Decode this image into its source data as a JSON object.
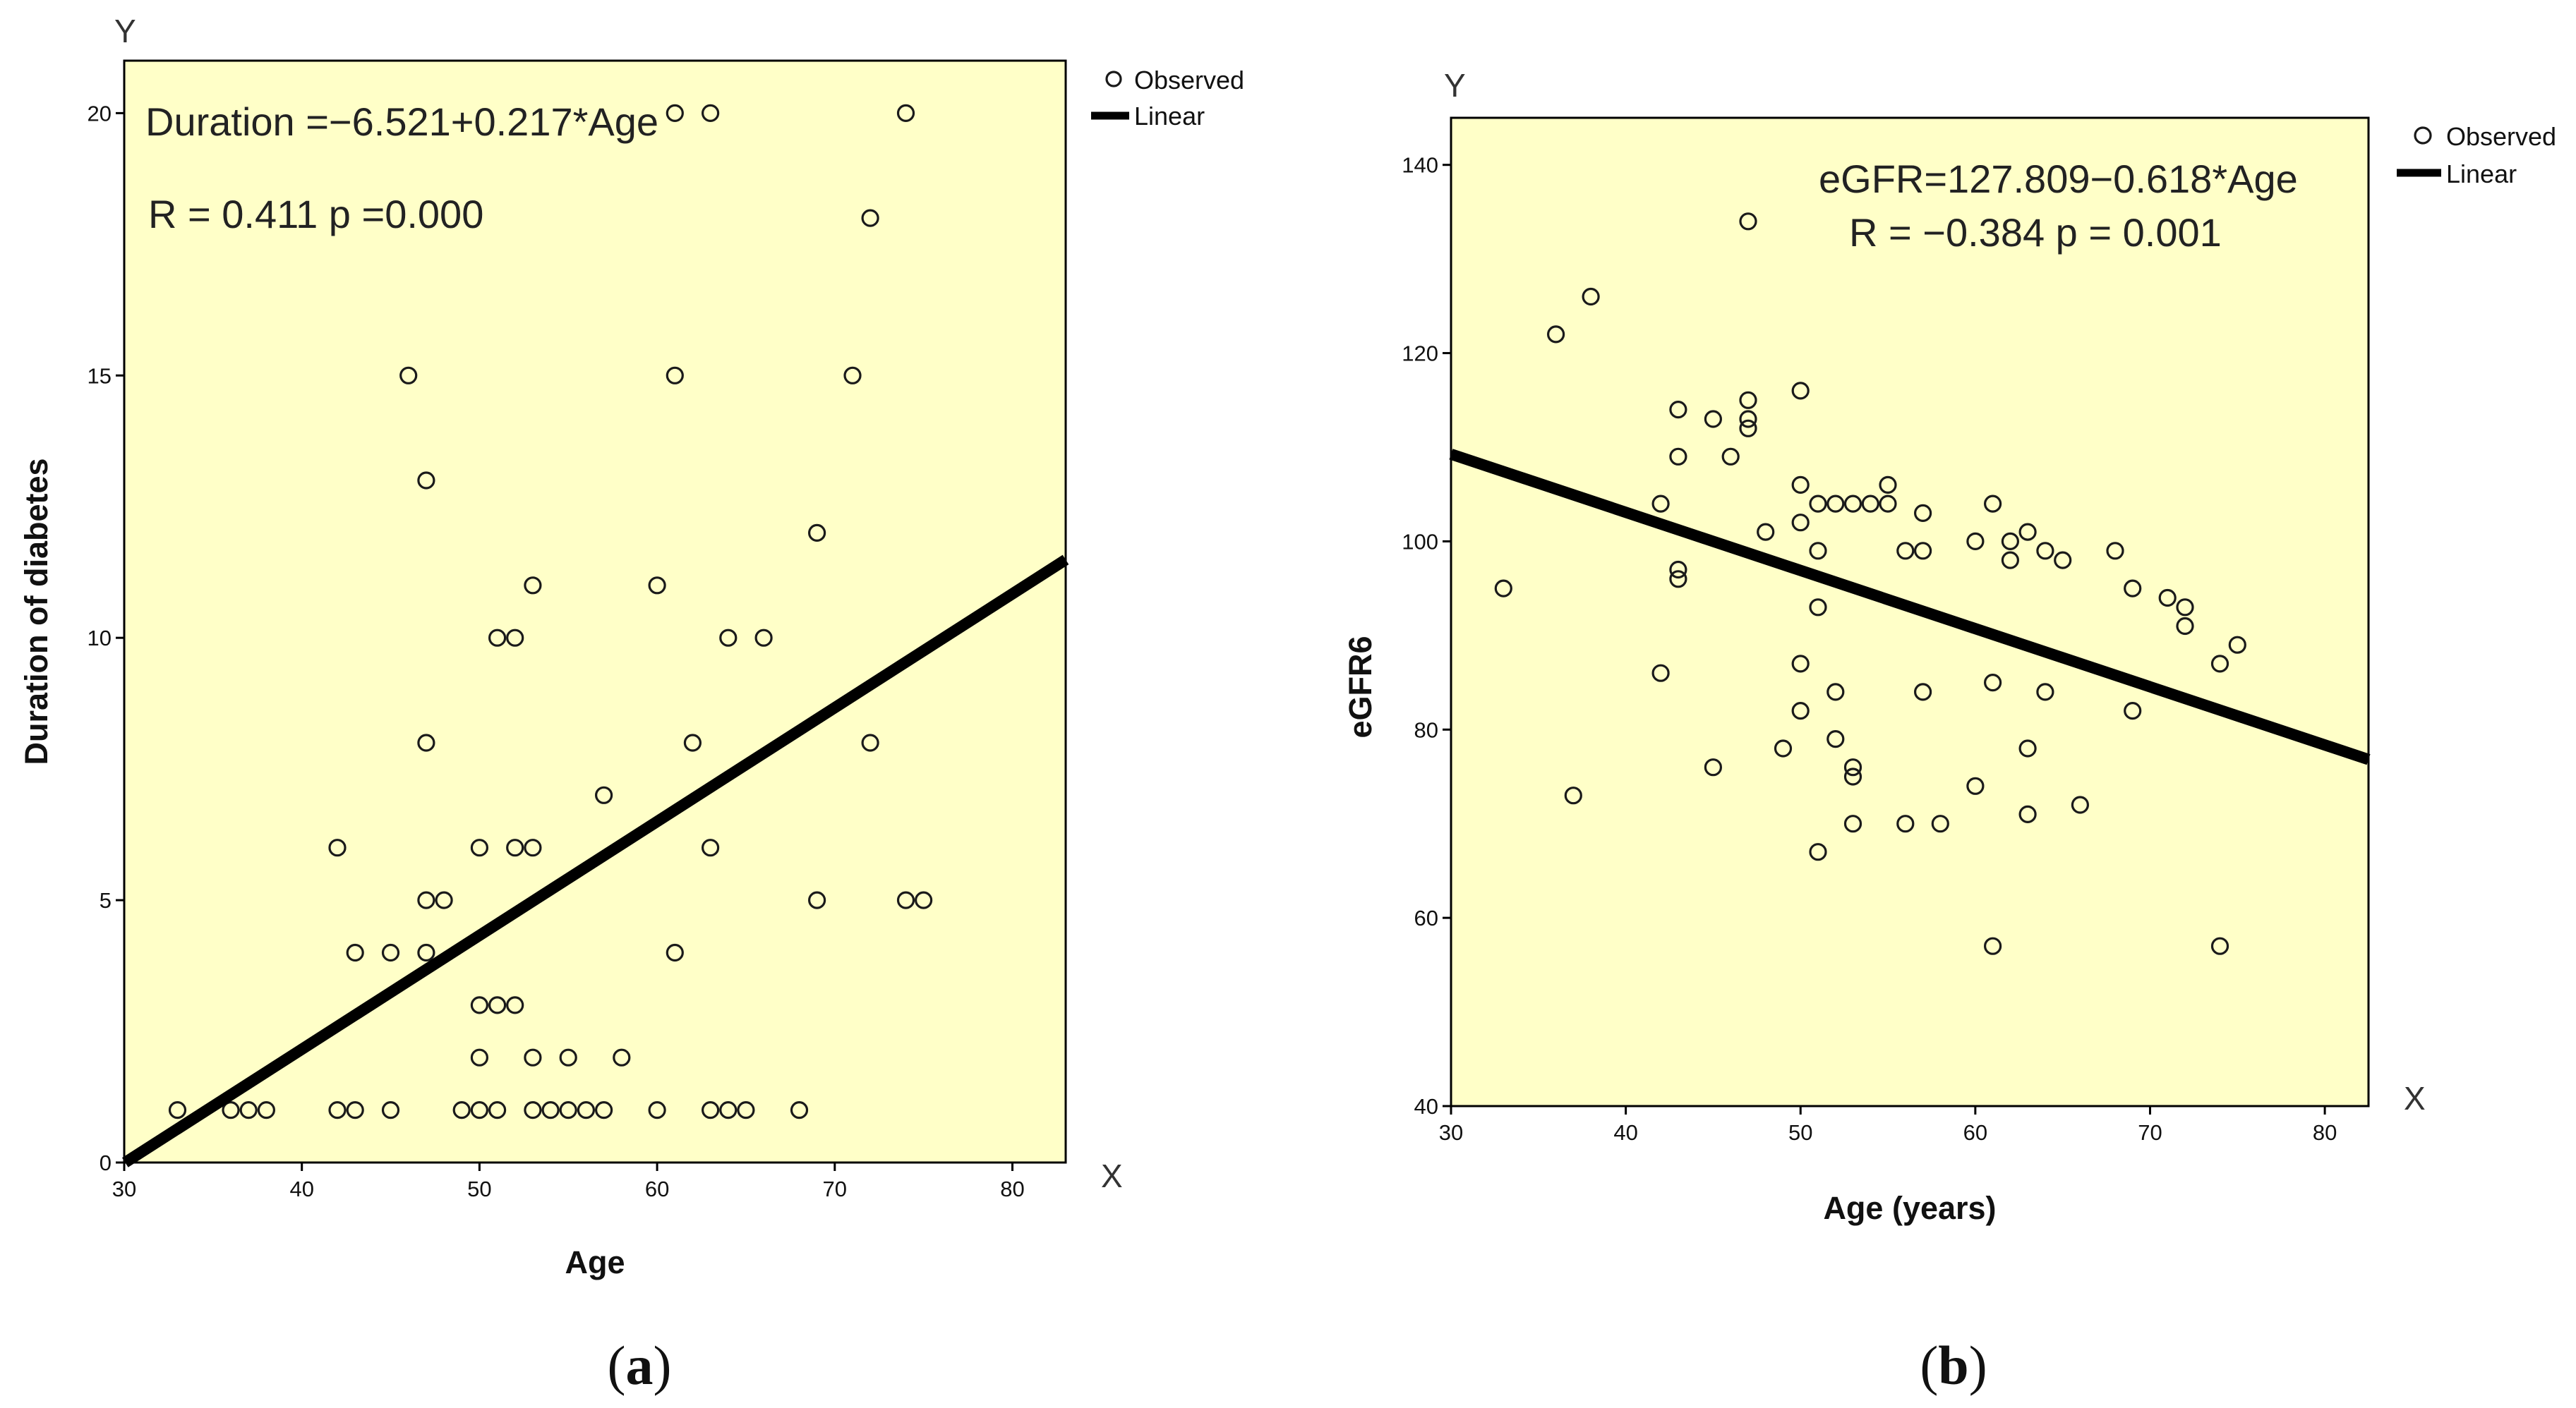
{
  "chart_data": [
    {
      "type": "scatter",
      "panel_label": "(a)",
      "panel_letter": "a",
      "equation": "Duration =−6.521+0.217*Age",
      "stats": "R = 0.411 p =0.000",
      "xlabel": "Age",
      "ylabel": "Duration  of  diabetes",
      "x_corner": "X",
      "y_corner": "Y",
      "xlim": [
        30,
        83
      ],
      "ylim": [
        0,
        21
      ],
      "xticks": [
        30,
        40,
        50,
        60,
        70,
        80
      ],
      "yticks": [
        0,
        5,
        10,
        15,
        20
      ],
      "grid": false,
      "legend": {
        "position": "top-right",
        "observed": "Observed",
        "linear": "Linear"
      },
      "series": [
        {
          "name": "Observed",
          "points": [
            [
              33,
              1
            ],
            [
              36,
              1
            ],
            [
              37,
              1
            ],
            [
              38,
              1
            ],
            [
              42,
              1
            ],
            [
              43,
              1
            ],
            [
              45,
              1
            ],
            [
              49,
              1
            ],
            [
              50,
              1
            ],
            [
              51,
              1
            ],
            [
              53,
              1
            ],
            [
              54,
              1
            ],
            [
              55,
              1
            ],
            [
              56,
              1
            ],
            [
              57,
              1
            ],
            [
              60,
              1
            ],
            [
              63,
              1
            ],
            [
              64,
              1
            ],
            [
              65,
              1
            ],
            [
              68,
              1
            ],
            [
              50,
              2
            ],
            [
              53,
              2
            ],
            [
              55,
              2
            ],
            [
              58,
              2
            ],
            [
              50,
              3
            ],
            [
              51,
              3
            ],
            [
              52,
              3
            ],
            [
              43,
              4
            ],
            [
              45,
              4
            ],
            [
              47,
              4
            ],
            [
              61,
              4
            ],
            [
              47,
              5
            ],
            [
              48,
              5
            ],
            [
              69,
              5
            ],
            [
              74,
              5
            ],
            [
              75,
              5
            ],
            [
              42,
              6
            ],
            [
              50,
              6
            ],
            [
              52,
              6
            ],
            [
              53,
              6
            ],
            [
              63,
              6
            ],
            [
              57,
              7
            ],
            [
              47,
              8
            ],
            [
              62,
              8
            ],
            [
              72,
              8
            ],
            [
              51,
              10
            ],
            [
              52,
              10
            ],
            [
              64,
              10
            ],
            [
              66,
              10
            ],
            [
              53,
              11
            ],
            [
              60,
              11
            ],
            [
              69,
              12
            ],
            [
              47,
              13
            ],
            [
              46,
              15
            ],
            [
              61,
              15
            ],
            [
              71,
              15
            ],
            [
              72,
              18
            ],
            [
              61,
              20
            ],
            [
              63,
              20
            ],
            [
              74,
              20
            ]
          ]
        },
        {
          "name": "Linear",
          "intercept": -6.521,
          "slope": 0.217,
          "x_range": [
            30,
            83
          ]
        }
      ]
    },
    {
      "type": "scatter",
      "panel_label": "(b)",
      "panel_letter": "b",
      "equation": "eGFR=127.809−0.618*Age",
      "stats": "R = −0.384  p = 0.001",
      "xlabel": "Age (years)",
      "ylabel": "eGFR6",
      "x_corner": "X",
      "y_corner": "Y",
      "xlim": [
        30,
        82.5
      ],
      "ylim": [
        40,
        145
      ],
      "xticks": [
        30,
        40,
        50,
        60,
        70,
        80
      ],
      "yticks": [
        40,
        60,
        80,
        100,
        120,
        140
      ],
      "grid": false,
      "legend": {
        "position": "top-right",
        "observed": "Observed",
        "linear": "Linear"
      },
      "series": [
        {
          "name": "Observed",
          "points": [
            [
              33,
              95
            ],
            [
              36,
              122
            ],
            [
              37,
              73
            ],
            [
              38,
              126
            ],
            [
              42,
              104
            ],
            [
              42,
              86
            ],
            [
              43,
              114
            ],
            [
              43,
              109
            ],
            [
              43,
              97
            ],
            [
              43,
              96
            ],
            [
              45,
              113
            ],
            [
              45,
              76
            ],
            [
              46,
              109
            ],
            [
              47,
              134
            ],
            [
              47,
              115
            ],
            [
              47,
              113
            ],
            [
              47,
              112
            ],
            [
              48,
              101
            ],
            [
              49,
              78
            ],
            [
              50,
              116
            ],
            [
              50,
              106
            ],
            [
              50,
              102
            ],
            [
              50,
              87
            ],
            [
              50,
              82
            ],
            [
              51,
              104
            ],
            [
              51,
              99
            ],
            [
              51,
              93
            ],
            [
              51,
              67
            ],
            [
              52,
              104
            ],
            [
              52,
              84
            ],
            [
              52,
              79
            ],
            [
              53,
              104
            ],
            [
              53,
              76
            ],
            [
              53,
              75
            ],
            [
              53,
              70
            ],
            [
              54,
              104
            ],
            [
              55,
              106
            ],
            [
              55,
              104
            ],
            [
              56,
              99
            ],
            [
              56,
              70
            ],
            [
              57,
              103
            ],
            [
              57,
              99
            ],
            [
              57,
              84
            ],
            [
              58,
              70
            ],
            [
              60,
              100
            ],
            [
              60,
              74
            ],
            [
              61,
              104
            ],
            [
              61,
              85
            ],
            [
              61,
              57
            ],
            [
              62,
              100
            ],
            [
              62,
              98
            ],
            [
              63,
              101
            ],
            [
              63,
              78
            ],
            [
              63,
              71
            ],
            [
              64,
              99
            ],
            [
              64,
              84
            ],
            [
              65,
              98
            ],
            [
              66,
              72
            ],
            [
              68,
              99
            ],
            [
              69,
              95
            ],
            [
              69,
              82
            ],
            [
              71,
              94
            ],
            [
              72,
              93
            ],
            [
              72,
              91
            ],
            [
              74,
              87
            ],
            [
              74,
              57
            ],
            [
              75,
              89
            ]
          ]
        },
        {
          "name": "Linear",
          "intercept": 127.809,
          "slope": -0.618,
          "x_range": [
            30,
            82.5
          ]
        }
      ]
    }
  ]
}
